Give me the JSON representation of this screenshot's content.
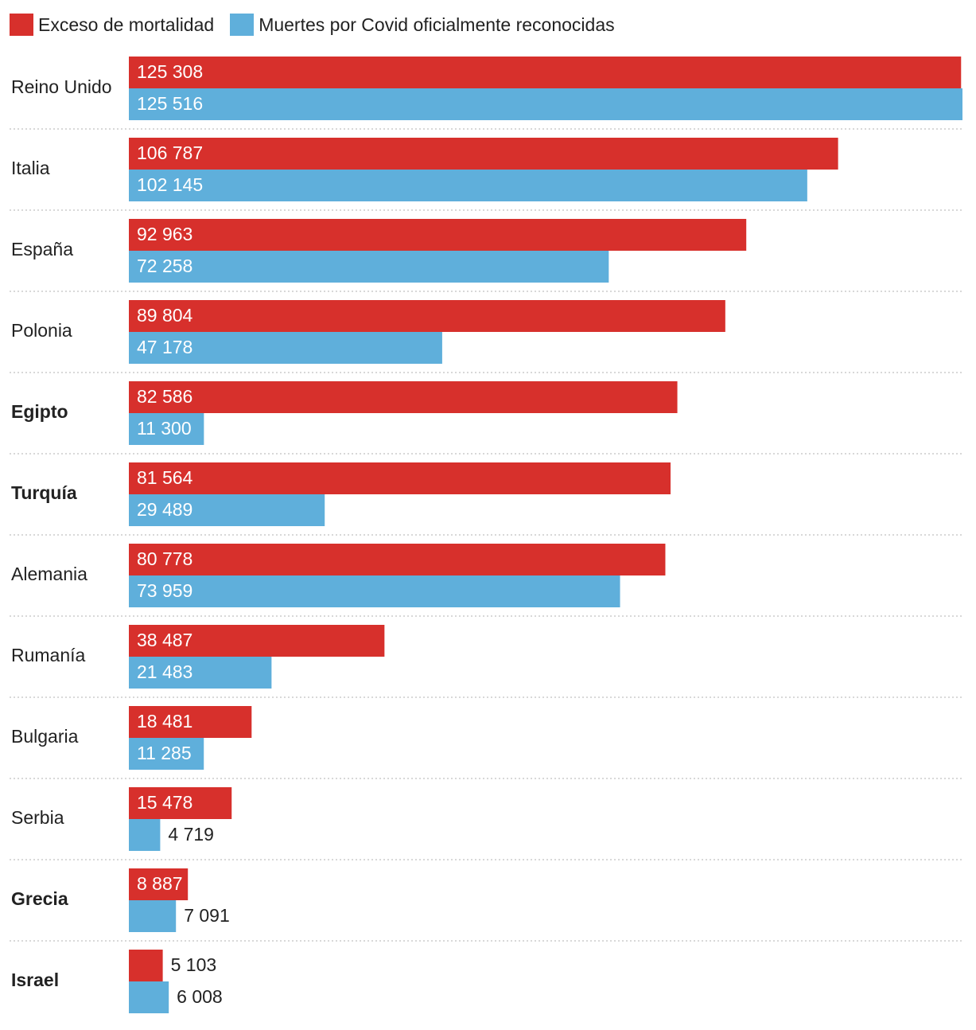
{
  "legend": {
    "excess_label": "Exceso de mortalidad",
    "covid_label": "Muertes por Covid oficialmente reconocidas"
  },
  "colors": {
    "excess": "#d7302c",
    "covid": "#5fafdb",
    "separator": "#cccccc",
    "label_inside": "#ffffff",
    "label_outside": "#222222"
  },
  "chart_data": {
    "type": "bar",
    "orientation": "horizontal",
    "title": "",
    "xlabel": "",
    "ylabel": "",
    "xlim": [
      0,
      125516
    ],
    "grid": false,
    "legend_position": "top-left",
    "categories": [
      "Reino Unido",
      "Italia",
      "España",
      "Polonia",
      "Egipto",
      "Turquía",
      "Alemania",
      "Rumanía",
      "Bulgaria",
      "Serbia",
      "Grecia",
      "Israel"
    ],
    "bold_categories": [
      "Egipto",
      "Turquía",
      "Grecia",
      "Israel"
    ],
    "series": [
      {
        "name": "Exceso de mortalidad",
        "values": [
          125308,
          106787,
          92963,
          89804,
          82586,
          81564,
          80778,
          38487,
          18481,
          15478,
          8887,
          5103
        ],
        "labels": [
          "125 308",
          "106 787",
          "92 963",
          "89 804",
          "82 586",
          "81 564",
          "80 778",
          "38 487",
          "18 481",
          "15 478",
          "8 887",
          "5 103"
        ]
      },
      {
        "name": "Muertes por Covid oficialmente reconocidas",
        "values": [
          125516,
          102145,
          72258,
          47178,
          11300,
          29489,
          73959,
          21483,
          11285,
          4719,
          7091,
          6008
        ],
        "labels": [
          "125 516",
          "102 145",
          "72 258",
          "47 178",
          "11 300",
          "29 489",
          "73 959",
          "21 483",
          "11 285",
          "4 719",
          "7 091",
          "6 008"
        ]
      }
    ]
  }
}
